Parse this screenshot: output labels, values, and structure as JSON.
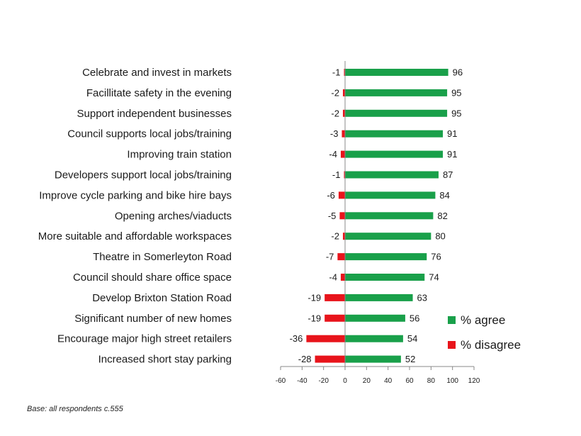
{
  "chart_data": {
    "type": "bar",
    "orientation": "horizontal",
    "categories": [
      "Celebrate and invest in markets",
      "Facillitate safety  in the evening",
      "Support independent  businesses",
      "Council supports local jobs/training",
      "Improving train station",
      "Developers support local jobs/training",
      "Improve cycle parking and bike hire bays",
      "Opening arches/viaducts",
      "More suitable and affordable workspaces",
      "Theatre in Somerleyton Road",
      "Council should share office space",
      "Develop Brixton Station Road",
      "Significant number of new homes",
      "Encourage major high street retailers",
      "Increased short stay parking"
    ],
    "series": [
      {
        "name": "% agree",
        "color": "#19a04a",
        "values": [
          96,
          95,
          95,
          91,
          91,
          87,
          84,
          82,
          80,
          76,
          74,
          63,
          56,
          54,
          52
        ]
      },
      {
        "name": "% disagree",
        "color": "#e8141b",
        "values": [
          -1,
          -2,
          -2,
          -3,
          -4,
          -1,
          -6,
          -5,
          -2,
          -7,
          -4,
          -19,
          -19,
          -36,
          -28
        ]
      }
    ],
    "xlim": [
      -60,
      120
    ],
    "xticks": [
      -60,
      -40,
      -20,
      0,
      20,
      40,
      60,
      80,
      100,
      120
    ],
    "legend_position": "right",
    "grid": false
  },
  "footnote": "Base: all respondents c.555"
}
